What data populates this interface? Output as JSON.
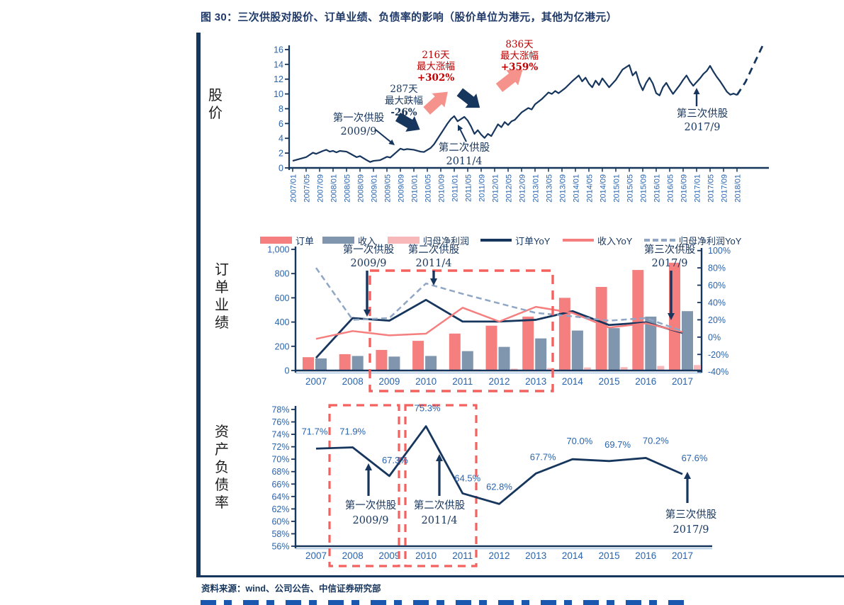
{
  "title": {
    "prefix": "图 30：",
    "text": "三次供股对股价、订单业绩、负债率的影响（股价单位为港元，其他为亿港元）"
  },
  "source": "资料来源：wind、公司公告、中信证券研究部",
  "side_labels": {
    "price": "股价",
    "orders": "订单业绩",
    "debt": "资产负债率"
  },
  "colors": {
    "navy": "#17365d",
    "axis_blue": "#2a64ad",
    "red_text": "#c00000",
    "salmon": "#f57f7f",
    "gray_blue": "#8095ae",
    "light_pink": "#f8b7b8",
    "dash_blue": "#8fa6c4",
    "box_red": "#f4625f",
    "arrow_pink": "#f5928c",
    "light_axis": "#a9c6e5"
  },
  "chart_data": [
    {
      "type": "line",
      "name": "股价",
      "unit": "港元",
      "ylim": [
        0,
        16
      ],
      "yticks": [
        0,
        2,
        4,
        6,
        8,
        10,
        12,
        14,
        16
      ],
      "x_unit": "months since 2007/01",
      "xtick_labels": [
        "2007/01",
        "2007/05",
        "2007/09",
        "2008/01",
        "2008/05",
        "2008/09",
        "2009/01",
        "2009/05",
        "2009/09",
        "2010/01",
        "2010/05",
        "2010/09",
        "2011/01",
        "2011/05",
        "2011/09",
        "2012/01",
        "2012/05",
        "2012/09",
        "2013/01",
        "2013/05",
        "2013/09",
        "2014/01",
        "2014/05",
        "2014/09",
        "2015/01",
        "2015/05",
        "2015/09",
        "2016/01",
        "2016/05",
        "2016/09",
        "2017/01",
        "2017/05",
        "2017/09",
        "2018/01"
      ],
      "series": [
        {
          "name": "股价",
          "style": "solid",
          "points": [
            [
              0,
              0.95
            ],
            [
              2,
              1.2
            ],
            [
              4,
              1.45
            ],
            [
              6,
              2.05
            ],
            [
              7,
              1.9
            ],
            [
              9,
              2.3
            ],
            [
              10,
              2.45
            ],
            [
              11,
              2.2
            ],
            [
              12,
              2.3
            ],
            [
              13,
              2.1
            ],
            [
              14,
              2.3
            ],
            [
              16,
              2.2
            ],
            [
              17,
              1.95
            ],
            [
              19,
              1.45
            ],
            [
              20,
              1.6
            ],
            [
              22,
              1.05
            ],
            [
              23,
              0.8
            ],
            [
              24,
              0.95
            ],
            [
              26,
              1.05
            ],
            [
              28,
              1.5
            ],
            [
              29,
              1.4
            ],
            [
              31,
              2.2
            ],
            [
              32,
              2.6
            ],
            [
              33,
              2.45
            ],
            [
              34,
              2.55
            ],
            [
              36,
              2.45
            ],
            [
              38,
              2.2
            ],
            [
              39,
              2.15
            ],
            [
              41,
              2.7
            ],
            [
              42,
              3.2
            ],
            [
              43,
              3.9
            ],
            [
              44,
              4.6
            ],
            [
              45,
              5.3
            ],
            [
              46,
              6.0
            ],
            [
              47,
              6.6
            ],
            [
              48,
              7.0
            ],
            [
              49,
              6.3
            ],
            [
              50,
              6.6
            ],
            [
              51,
              6.9
            ],
            [
              52,
              6.4
            ],
            [
              53,
              5.6
            ],
            [
              54,
              4.6
            ],
            [
              55,
              5.1
            ],
            [
              56,
              4.5
            ],
            [
              57,
              4.05
            ],
            [
              58,
              4.6
            ],
            [
              59,
              4.3
            ],
            [
              60,
              5.1
            ],
            [
              61,
              5.9
            ],
            [
              62,
              5.5
            ],
            [
              63,
              6.2
            ],
            [
              64,
              5.8
            ],
            [
              65,
              6.3
            ],
            [
              66,
              6.5
            ],
            [
              67,
              7.0
            ],
            [
              68,
              7.5
            ],
            [
              69,
              7.8
            ],
            [
              70,
              8.1
            ],
            [
              71,
              7.9
            ],
            [
              72,
              8.6
            ],
            [
              74,
              9.3
            ],
            [
              76,
              10.2
            ],
            [
              77,
              10.0
            ],
            [
              78,
              10.4
            ],
            [
              79,
              10.1
            ],
            [
              81,
              10.8
            ],
            [
              83,
              11.7
            ],
            [
              84,
              12.1
            ],
            [
              85,
              12.5
            ],
            [
              86,
              11.7
            ],
            [
              87,
              12.2
            ],
            [
              88,
              11.4
            ],
            [
              89,
              10.9
            ],
            [
              90,
              11.8
            ],
            [
              91,
              11.2
            ],
            [
              92,
              12.1
            ],
            [
              93,
              11.5
            ],
            [
              94,
              10.9
            ],
            [
              96,
              11.9
            ],
            [
              98,
              13.3
            ],
            [
              100,
              13.9
            ],
            [
              101,
              12.5
            ],
            [
              102,
              13.0
            ],
            [
              103,
              11.5
            ],
            [
              104,
              10.5
            ],
            [
              105,
              11.5
            ],
            [
              106,
              12.2
            ],
            [
              107,
              11.4
            ],
            [
              108,
              10.1
            ],
            [
              109,
              9.8
            ],
            [
              110,
              10.9
            ],
            [
              111,
              11.5
            ],
            [
              112,
              10.7
            ],
            [
              113,
              10.0
            ],
            [
              114,
              10.6
            ],
            [
              115,
              11.2
            ],
            [
              116,
              11.9
            ],
            [
              117,
              12.5
            ],
            [
              118,
              11.7
            ],
            [
              119,
              11.1
            ],
            [
              120,
              11.6
            ],
            [
              121,
              12.1
            ],
            [
              122,
              12.7
            ],
            [
              123,
              13.1
            ],
            [
              124,
              13.8
            ],
            [
              125,
              13.0
            ],
            [
              126,
              12.3
            ],
            [
              127,
              11.7
            ],
            [
              128,
              11.0
            ],
            [
              129,
              10.3
            ],
            [
              130,
              9.9
            ],
            [
              131,
              10.05
            ],
            [
              132,
              9.85
            ]
          ]
        },
        {
          "name": "projection",
          "style": "dashed",
          "points": [
            [
              132,
              9.85
            ],
            [
              134.5,
              11.6
            ],
            [
              140,
              16.9
            ]
          ]
        }
      ],
      "annotations": [
        {
          "text": [
            "第一次供股",
            "2009/9"
          ],
          "color": "navy"
        },
        {
          "text": [
            "287天",
            "最大跌幅",
            "-26%"
          ],
          "color": "navy"
        },
        {
          "text": [
            "216天",
            "最大涨幅",
            "+302%"
          ],
          "color": "red"
        },
        {
          "text": [
            "836天",
            "最大涨幅",
            "+359%"
          ],
          "color": "red"
        },
        {
          "text": [
            "第二次供股",
            "2011/4"
          ],
          "color": "navy"
        },
        {
          "text": [
            "第三次供股",
            "2017/9"
          ],
          "color": "navy"
        }
      ]
    },
    {
      "type": "bar+line",
      "name": "订单业绩",
      "unit": "亿港元",
      "categories": [
        "2007",
        "2008",
        "2009",
        "2010",
        "2011",
        "2012",
        "2013",
        "2014",
        "2015",
        "2016",
        "2017"
      ],
      "left_axis": {
        "lim": [
          0,
          1000
        ],
        "tick_labels": [
          "1,000",
          "800",
          "600",
          "400",
          "200",
          "0"
        ],
        "tick_values": [
          1000,
          800,
          600,
          400,
          200,
          0
        ]
      },
      "right_axis": {
        "lim": [
          -40,
          100
        ],
        "tick_labels": [
          "100%",
          "80%",
          "60%",
          "40%",
          "20%",
          "0%",
          "-20%",
          "-40%"
        ],
        "tick_values": [
          100,
          80,
          60,
          40,
          20,
          0,
          -20,
          -40
        ]
      },
      "legend": [
        {
          "label": "订单",
          "kind": "bar",
          "color": "#f57f7f"
        },
        {
          "label": "收入",
          "kind": "bar",
          "color": "#8095ae"
        },
        {
          "label": "归母净利润",
          "kind": "bar",
          "color": "#f8b7b8"
        },
        {
          "label": "订单YoY",
          "kind": "line",
          "color": "#17365d"
        },
        {
          "label": "收入YoY",
          "kind": "line",
          "color": "#f57f7f"
        },
        {
          "label": "归母净利润YoY",
          "kind": "dash",
          "color": "#8fa6c4"
        }
      ],
      "bars": [
        {
          "name": "订单",
          "color": "#f57f7f",
          "values": [
            110,
            135,
            170,
            245,
            305,
            370,
            445,
            600,
            690,
            830,
            890
          ]
        },
        {
          "name": "收入",
          "color": "#8095ae",
          "values": [
            100,
            120,
            115,
            120,
            160,
            195,
            265,
            330,
            350,
            445,
            490
          ]
        },
        {
          "name": "归母净利润",
          "color": "#f8b7b8",
          "values": [
            0,
            0,
            0,
            8,
            10,
            15,
            20,
            25,
            28,
            38,
            45
          ]
        }
      ],
      "lines": [
        {
          "name": "订单YoY",
          "color": "#17365d",
          "dashed": false,
          "values": [
            -24,
            22,
            19,
            43,
            18,
            18,
            20,
            30,
            14,
            17,
            5
          ]
        },
        {
          "name": "收入YoY",
          "color": "#f57f7f",
          "dashed": false,
          "values": [
            -2,
            7,
            2,
            4,
            34,
            18,
            35,
            28,
            11,
            16,
            6
          ]
        },
        {
          "name": "归母净利润YoY",
          "color": "#8fa6c4",
          "dashed": true,
          "values": [
            80,
            20,
            22,
            62,
            50,
            39,
            28,
            24,
            19,
            22,
            7
          ]
        }
      ],
      "highlight_box_years": [
        "2009",
        "2013"
      ],
      "annotations": [
        {
          "line1": "第一次供股",
          "line2": "2009/9"
        },
        {
          "line1": "第二次供股",
          "line2": "2011/4"
        },
        {
          "line1": "第三次供股",
          "line2": "2017/9"
        }
      ]
    },
    {
      "type": "line",
      "name": "资产负债率",
      "categories": [
        "2007",
        "2008",
        "2009",
        "2010",
        "2011",
        "2012",
        "2013",
        "2014",
        "2015",
        "2016",
        "2017"
      ],
      "ylim": [
        56,
        78
      ],
      "ytick_labels": [
        "78%",
        "76%",
        "74%",
        "72%",
        "70%",
        "68%",
        "66%",
        "64%",
        "62%",
        "60%",
        "58%",
        "56%"
      ],
      "ytick_values": [
        78,
        76,
        74,
        72,
        70,
        68,
        66,
        64,
        62,
        60,
        58,
        56
      ],
      "values": [
        71.7,
        71.9,
        67.3,
        75.3,
        64.5,
        62.8,
        67.7,
        70.0,
        69.7,
        70.2,
        67.6
      ],
      "point_labels": [
        "71.7%",
        "71.9%",
        "67.3%",
        "75.3%",
        "64.5%",
        "62.8%",
        "67.7%",
        "70.0%",
        "69.7%",
        "70.2%",
        "67.6%"
      ],
      "highlight_boxes": [
        [
          "2008",
          "2009"
        ],
        [
          "2010",
          "2011"
        ]
      ],
      "annotations": [
        {
          "line1": "第一次供股",
          "line2": "2009/9"
        },
        {
          "line1": "第二次供股",
          "line2": "2011/4"
        },
        {
          "line1": "第三次供股",
          "line2": "2017/9"
        }
      ]
    }
  ]
}
